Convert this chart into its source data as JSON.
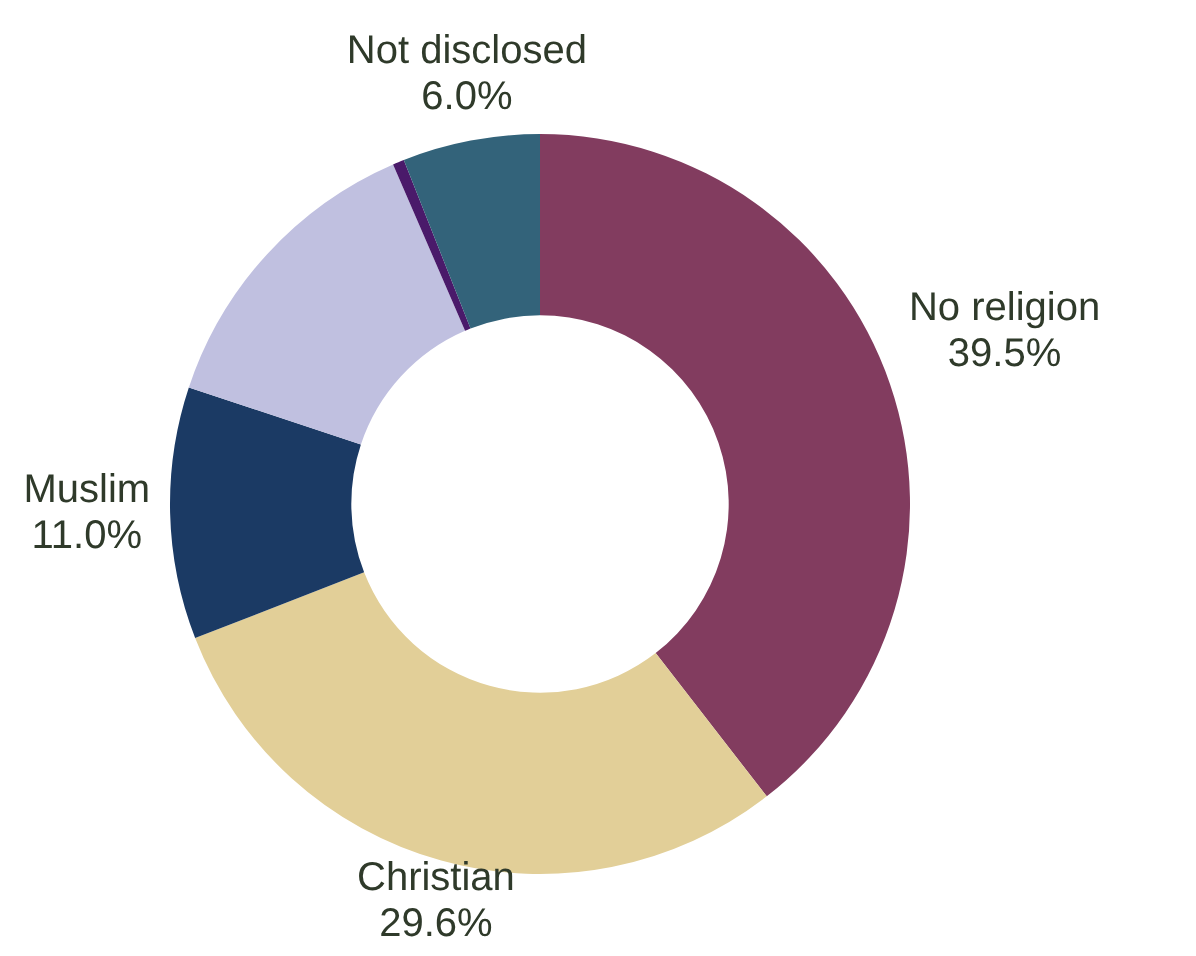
{
  "chart_data": {
    "type": "donut",
    "categories": [
      "No religion",
      "Christian",
      "Muslim",
      null,
      null,
      "Not disclosed"
    ],
    "values": [
      39.5,
      29.6,
      11.0,
      13.4,
      0.5,
      6.0
    ],
    "colors": [
      "#823c5f",
      "#e2cf98",
      "#1b3a64",
      "#c0c0e0",
      "#4a1a6a",
      "#33637a"
    ],
    "value_labels": [
      "39.5%",
      "29.6%",
      "11.0%",
      null,
      null,
      "6.0%"
    ],
    "legend": false
  }
}
